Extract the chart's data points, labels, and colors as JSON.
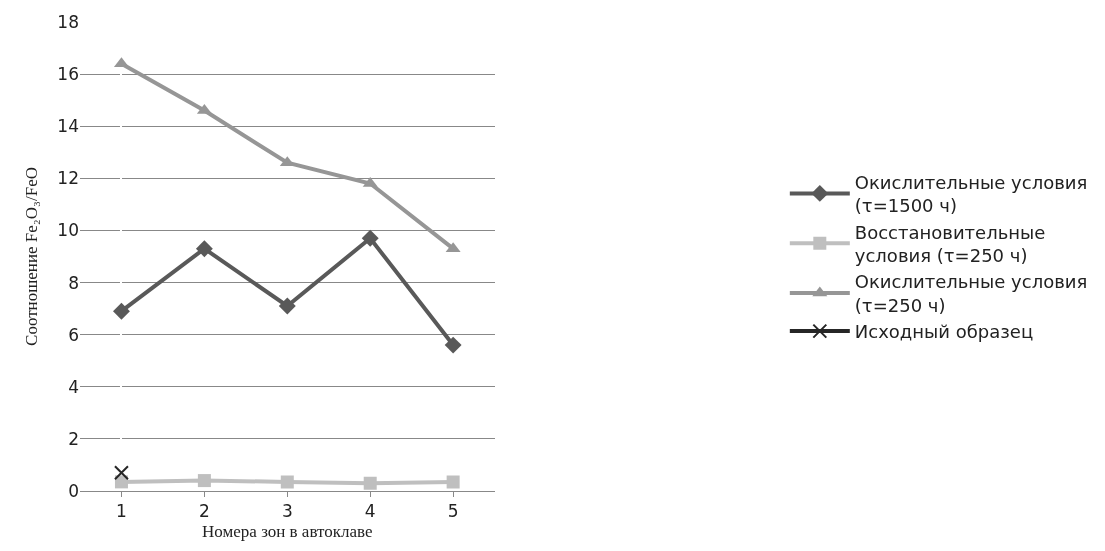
{
  "chart_data": {
    "type": "line",
    "xlabel": "Номера зон в автоклаве",
    "ylabel": "Соотношение Fe₂O₃/FeO",
    "categories": [
      "1",
      "2",
      "3",
      "4",
      "5"
    ],
    "ylim": [
      0,
      18
    ],
    "yticks": [
      0,
      2,
      4,
      6,
      8,
      10,
      12,
      14,
      16,
      18
    ],
    "grid": "y",
    "legend": "right",
    "series": [
      {
        "name": "Окислительные условия (τ=1500 ч)",
        "color": "#595959",
        "marker": "diamond",
        "values": [
          6.9,
          9.3,
          7.1,
          9.7,
          5.6
        ]
      },
      {
        "name": "Восстановительные условия (τ=250 ч)",
        "color": "#bfbfbf",
        "marker": "square",
        "values": [
          0.35,
          0.4,
          0.35,
          0.3,
          0.35
        ]
      },
      {
        "name": "Окислительные условия (τ=250 ч)",
        "color": "#969696",
        "marker": "triangle",
        "values": [
          16.4,
          14.6,
          12.6,
          11.8,
          9.3
        ]
      },
      {
        "name": "Исходный образец",
        "color": "#262626",
        "marker": "cross",
        "values": [
          0.7,
          null,
          null,
          null,
          null
        ]
      }
    ]
  }
}
